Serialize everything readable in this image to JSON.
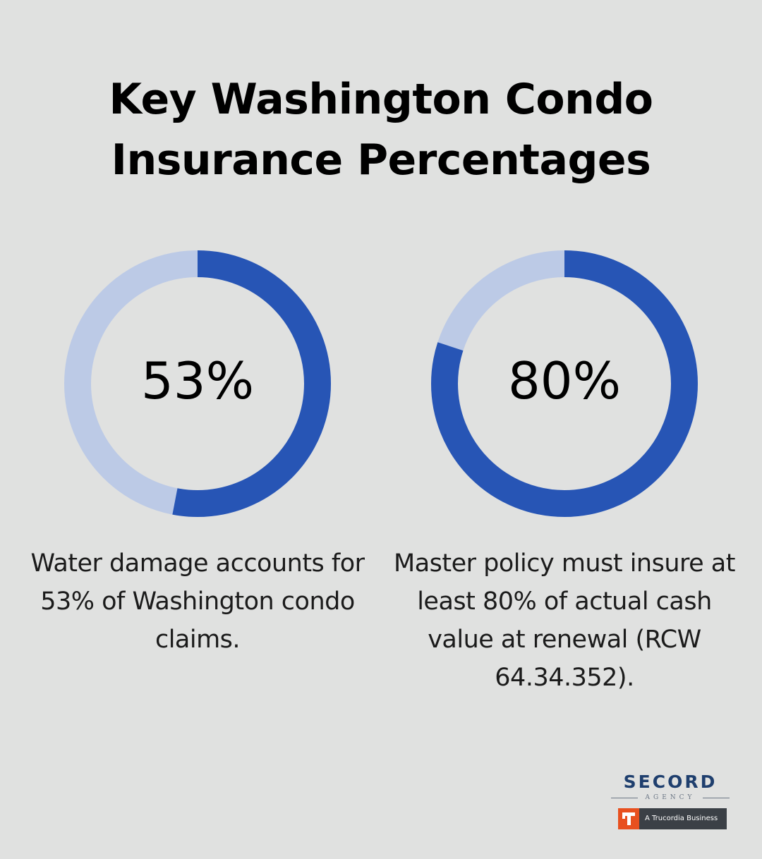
{
  "title_line1": "Key Washington Condo",
  "title_line2": "Insurance Percentages",
  "colors": {
    "background": "#e0e1e0",
    "filled": "#2755b5",
    "remaining": "#bccae6"
  },
  "chart_data": [
    {
      "type": "pie",
      "style": "donut",
      "value": 53,
      "label": "53%",
      "description": "Water damage accounts for 53% of Washington condo claims."
    },
    {
      "type": "pie",
      "style": "donut",
      "value": 80,
      "label": "80%",
      "description": "Master policy must insure at least 80% of actual cash value at renewal (RCW 64.34.352)."
    }
  ],
  "logo": {
    "name": "SECORD",
    "subtitle": "AGENCY",
    "badge_text": "A Trucordia Business"
  }
}
